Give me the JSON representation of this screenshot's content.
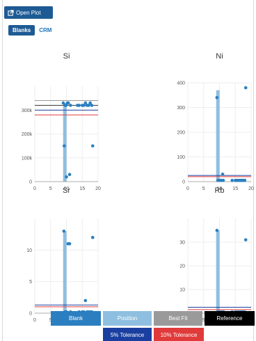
{
  "toolbar": {
    "open_plot_label": "Open Plot"
  },
  "tabs": [
    {
      "label": "Blanks",
      "active": true
    },
    {
      "label": "CRM",
      "active": false
    }
  ],
  "legend": {
    "row1": [
      {
        "label": "Blank",
        "color": "#2b7fc0"
      },
      {
        "label": "Position",
        "color": "#8fbfe0"
      },
      {
        "label": "Best Fit",
        "color": "#9a9a9a"
      },
      {
        "label": "Reference",
        "color": "#000000"
      }
    ],
    "row2": [
      {
        "label": "5% Tolerance",
        "color": "#1a3fa0"
      },
      {
        "label": "10% Tolerance",
        "color": "#e03a3a"
      }
    ]
  },
  "chart_data": [
    {
      "type": "scatter",
      "title": "Si",
      "xlim": [
        0,
        20
      ],
      "ylim": [
        0,
        400000
      ],
      "xticks": [
        0,
        5,
        10,
        15,
        20
      ],
      "yticks": [
        {
          "v": 0,
          "t": "0"
        },
        {
          "v": 100000,
          "t": "100k"
        },
        {
          "v": 200000,
          "t": "200k"
        },
        {
          "v": 300000,
          "t": "300k"
        }
      ],
      "bar": {
        "x": 9.5,
        "value": 330000
      },
      "ref_lines": [
        280000,
        300000,
        320000,
        340000
      ],
      "points": [
        [
          9,
          330000
        ],
        [
          9.3,
          150000
        ],
        [
          9.6,
          320000
        ],
        [
          9.9,
          320000
        ],
        [
          10,
          20000
        ],
        [
          10.3,
          330000
        ],
        [
          10.6,
          330000
        ],
        [
          11,
          30000
        ],
        [
          11.3,
          320000
        ],
        [
          13.5,
          320000
        ],
        [
          14,
          320000
        ],
        [
          15,
          320000
        ],
        [
          15.5,
          320000
        ],
        [
          16,
          330000
        ],
        [
          16.5,
          320000
        ],
        [
          17,
          320000
        ],
        [
          17.5,
          330000
        ],
        [
          18,
          320000
        ],
        [
          18.3,
          150000
        ]
      ]
    },
    {
      "type": "scatter",
      "title": "Ni",
      "xlim": [
        0,
        20
      ],
      "ylim": [
        0,
        400
      ],
      "xticks": [
        0,
        5,
        10,
        15,
        20
      ],
      "yticks": [
        {
          "v": 0,
          "t": "0"
        },
        {
          "v": 100,
          "t": "100"
        },
        {
          "v": 200,
          "t": "200"
        },
        {
          "v": 300,
          "t": "300"
        },
        {
          "v": 400,
          "t": "400"
        }
      ],
      "bar": {
        "x": 9.5,
        "value": 370
      },
      "ref_lines": [
        20,
        25
      ],
      "points": [
        [
          9.2,
          340
        ],
        [
          9.5,
          5
        ],
        [
          10,
          5
        ],
        [
          10.5,
          5
        ],
        [
          11,
          30
        ],
        [
          11.2,
          5
        ],
        [
          14,
          5
        ],
        [
          15,
          5
        ],
        [
          15.5,
          5
        ],
        [
          16,
          5
        ],
        [
          16.5,
          5
        ],
        [
          17,
          5
        ],
        [
          17.5,
          5
        ],
        [
          18,
          5
        ],
        [
          18.3,
          380
        ]
      ]
    },
    {
      "type": "scatter",
      "title": "Sr",
      "xlim": [
        0,
        20
      ],
      "ylim": [
        0,
        15
      ],
      "xticks": [
        0,
        5,
        10,
        15,
        20
      ],
      "yticks": [
        {
          "v": 0,
          "t": "0"
        },
        {
          "v": 5,
          "t": "5"
        },
        {
          "v": 10,
          "t": "10"
        }
      ],
      "bar": {
        "x": 9.5,
        "value": 13
      },
      "ref_lines": [
        1.0,
        1.3
      ],
      "points": [
        [
          9.2,
          13
        ],
        [
          9.5,
          0.2
        ],
        [
          10,
          0.2
        ],
        [
          10.5,
          11
        ],
        [
          11,
          11
        ],
        [
          11.3,
          0.2
        ],
        [
          14,
          0.2
        ],
        [
          15,
          0.2
        ],
        [
          15.5,
          0.2
        ],
        [
          16,
          2
        ],
        [
          16.5,
          0.2
        ],
        [
          17,
          0.2
        ],
        [
          17.5,
          0.2
        ],
        [
          18,
          0.2
        ],
        [
          18.3,
          12
        ]
      ]
    },
    {
      "type": "scatter",
      "title": "Rb",
      "xlim": [
        0,
        20
      ],
      "ylim": [
        0,
        40
      ],
      "xticks": [
        0,
        5,
        10,
        15,
        20
      ],
      "yticks": [
        {
          "v": 0,
          "t": "0"
        },
        {
          "v": 10,
          "t": "10"
        },
        {
          "v": 20,
          "t": "20"
        },
        {
          "v": 30,
          "t": "30"
        }
      ],
      "bar": {
        "x": 9.5,
        "value": 35
      },
      "ref_lines": [
        1.5,
        2.5
      ],
      "points": [
        [
          9.2,
          35
        ],
        [
          9.5,
          0.5
        ],
        [
          10,
          0.5
        ],
        [
          10.5,
          0.5
        ],
        [
          11,
          0.5
        ],
        [
          11.3,
          0.5
        ],
        [
          14,
          0.5
        ],
        [
          15,
          0.5
        ],
        [
          15.5,
          0.5
        ],
        [
          16,
          0.5
        ],
        [
          16.5,
          0.5
        ],
        [
          17,
          0.5
        ],
        [
          17.5,
          0.5
        ],
        [
          18,
          0.5
        ],
        [
          18.3,
          31
        ]
      ]
    }
  ]
}
